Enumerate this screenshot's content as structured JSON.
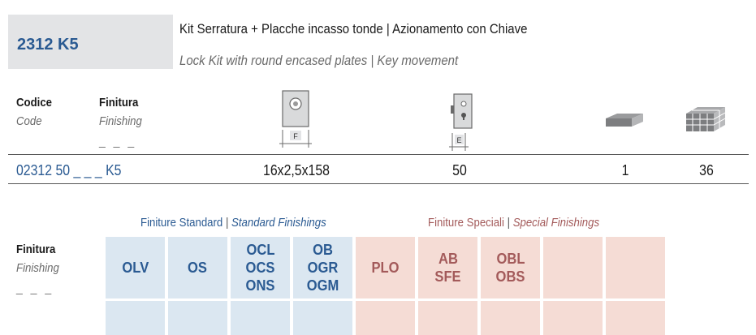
{
  "product": {
    "code": "2312 K5",
    "title_it": "Kit Serratura + Placche incasso tonde | Azionamento con Chiave",
    "title_en": "Lock Kit with round encased plates | Key movement"
  },
  "table": {
    "header": {
      "code_label_it": "Codice",
      "code_label_en": "Code",
      "finish_label_it": "Finitura",
      "finish_label_en": "Finishing",
      "finish_placeholder": "_ _ _",
      "f_label": "F",
      "e_label": "E"
    },
    "row": {
      "code": "02312 50 _ _ _ K5",
      "dimension": "16x2,5x158",
      "backset": "50",
      "pack_qty": "1",
      "box_qty": "36"
    }
  },
  "finishes": {
    "label_it": "Finitura",
    "label_en": "Finishing",
    "placeholder": "_ _ _",
    "standard_title_it": "Finiture Standard",
    "standard_title_en": "Standard Finishings",
    "special_title_it": "Finiture Speciali",
    "special_title_en": "Special Finishings",
    "separator": "|",
    "standard": [
      {
        "lines": [
          "OLV"
        ]
      },
      {
        "lines": [
          "OS"
        ]
      },
      {
        "lines": [
          "OCL",
          "OCS",
          "ONS"
        ]
      },
      {
        "lines": [
          "OB",
          "OGR",
          "OGM"
        ]
      }
    ],
    "special": [
      {
        "lines": [
          "PLO"
        ]
      },
      {
        "lines": [
          "AB",
          "SFE"
        ]
      },
      {
        "lines": [
          "OBL",
          "OBS"
        ]
      },
      {
        "lines": []
      },
      {
        "lines": []
      }
    ],
    "colors": {
      "standard_bg": "#dbe7f1",
      "standard_text": "#2a5a92",
      "special_bg": "#f5dcd5",
      "special_text": "#a35a5a"
    }
  }
}
